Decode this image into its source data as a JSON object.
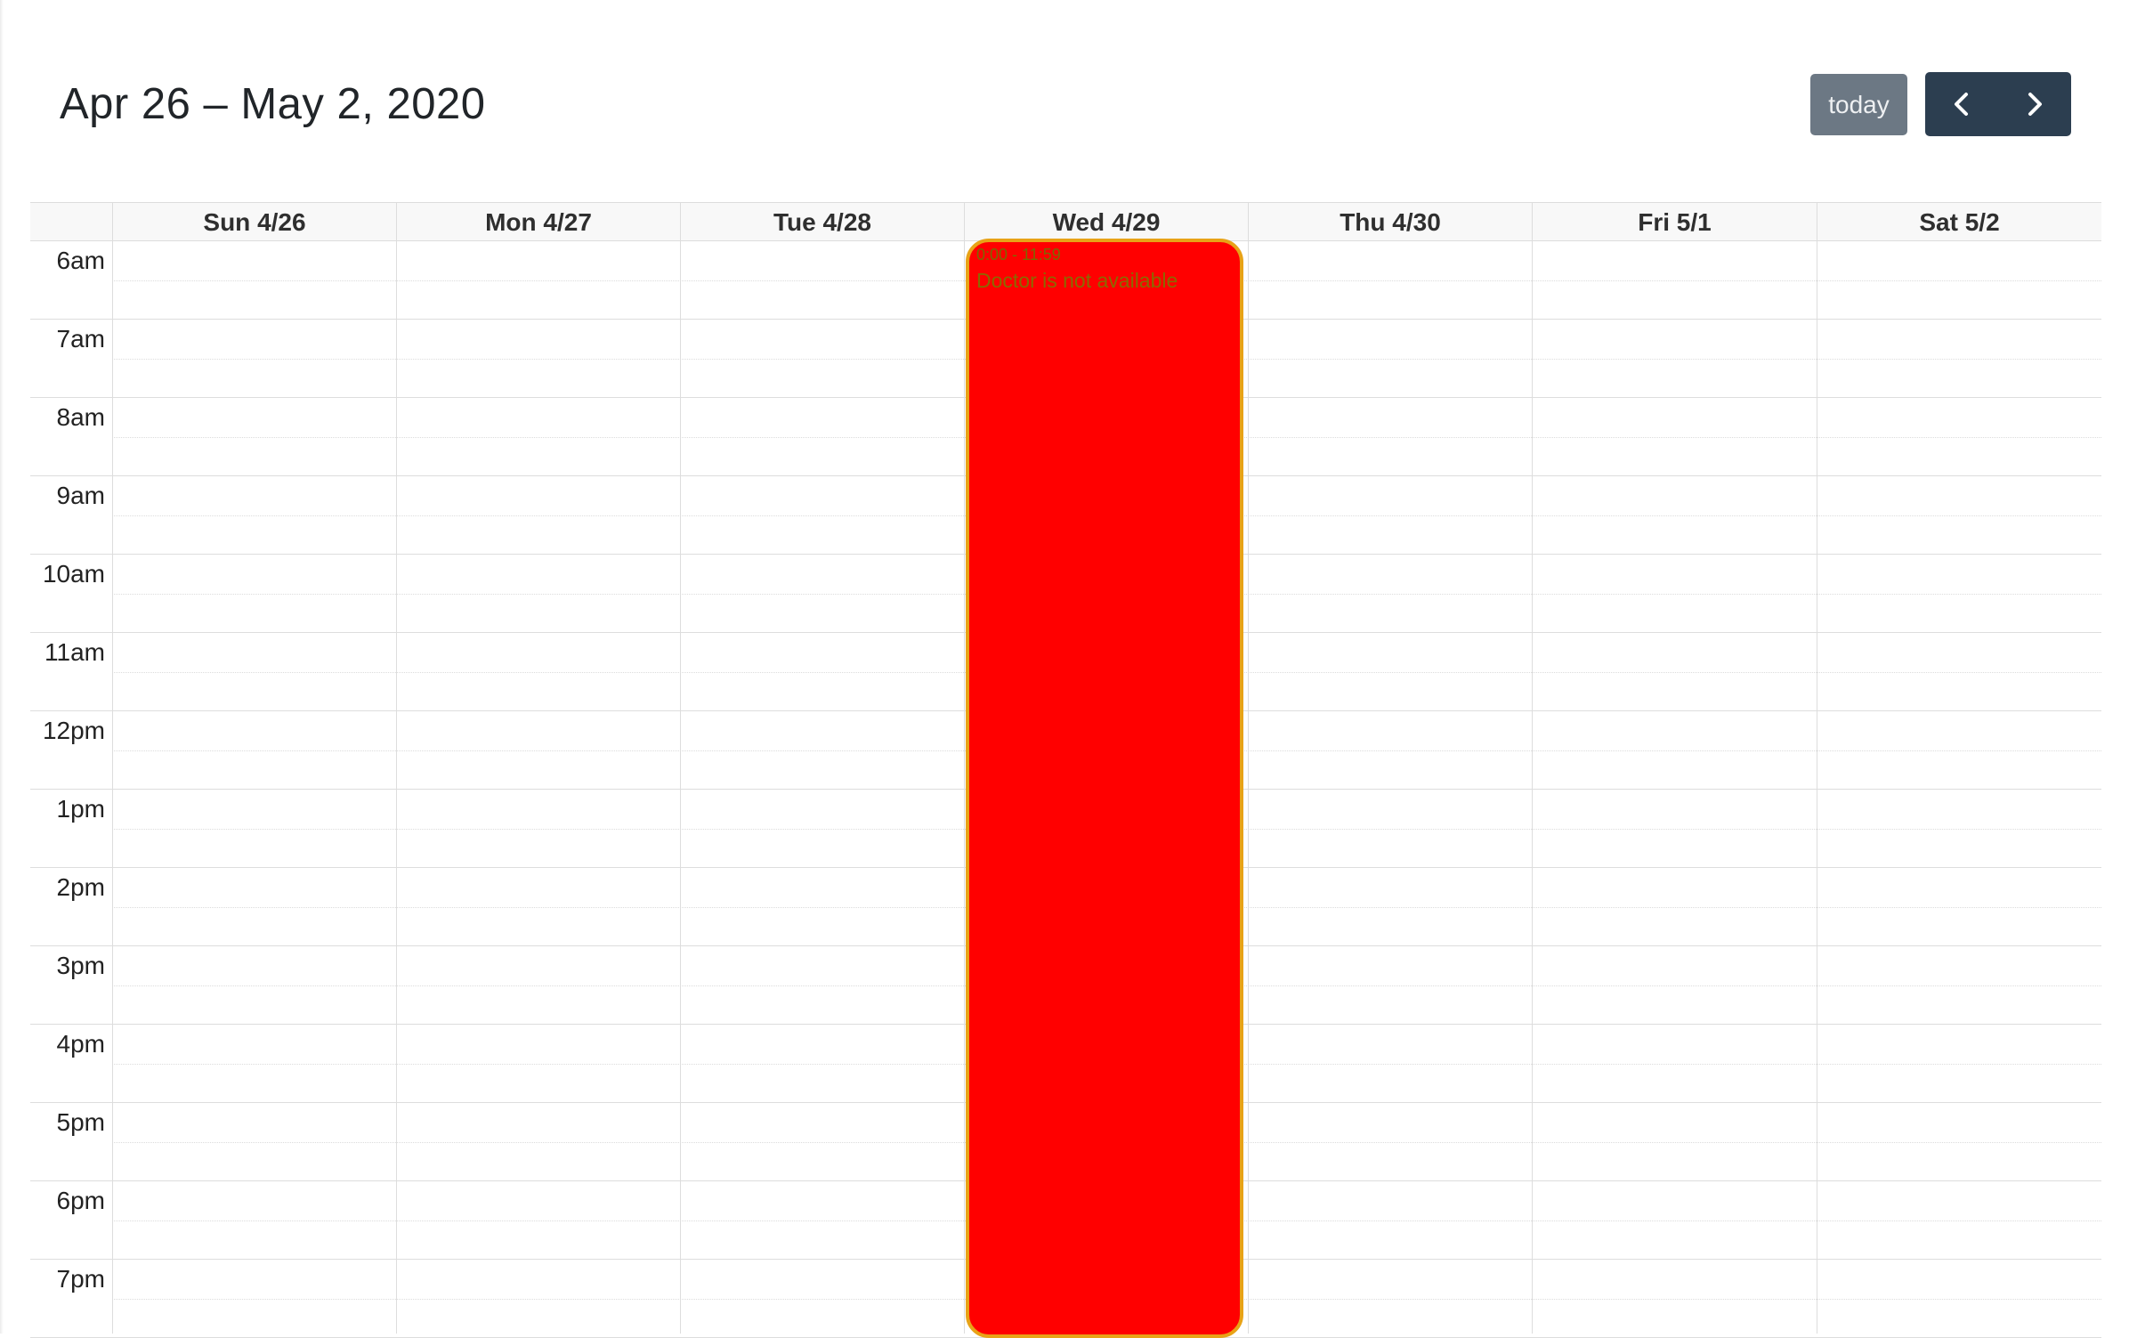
{
  "header": {
    "title": "Apr 26 – May 2, 2020",
    "today_label": "today",
    "prev_icon": "chevron-left-icon",
    "next_icon": "chevron-right-icon"
  },
  "colors": {
    "today_button": "#6c7884",
    "nav_buttons": "#2c3e50",
    "event_background": "#ff0000",
    "event_border": "#e8a317"
  },
  "days": [
    {
      "label": "Sun 4/26"
    },
    {
      "label": "Mon 4/27"
    },
    {
      "label": "Tue 4/28"
    },
    {
      "label": "Wed 4/29"
    },
    {
      "label": "Thu 4/30"
    },
    {
      "label": "Fri 5/1"
    },
    {
      "label": "Sat 5/2"
    }
  ],
  "times": [
    "6am",
    "7am",
    "8am",
    "9am",
    "10am",
    "11am",
    "12pm",
    "1pm",
    "2pm",
    "3pm",
    "4pm",
    "5pm",
    "6pm",
    "7pm"
  ],
  "event": {
    "day": "Wed 4/29",
    "time": "0:00 - 11:59",
    "title": "Doctor is not available"
  }
}
